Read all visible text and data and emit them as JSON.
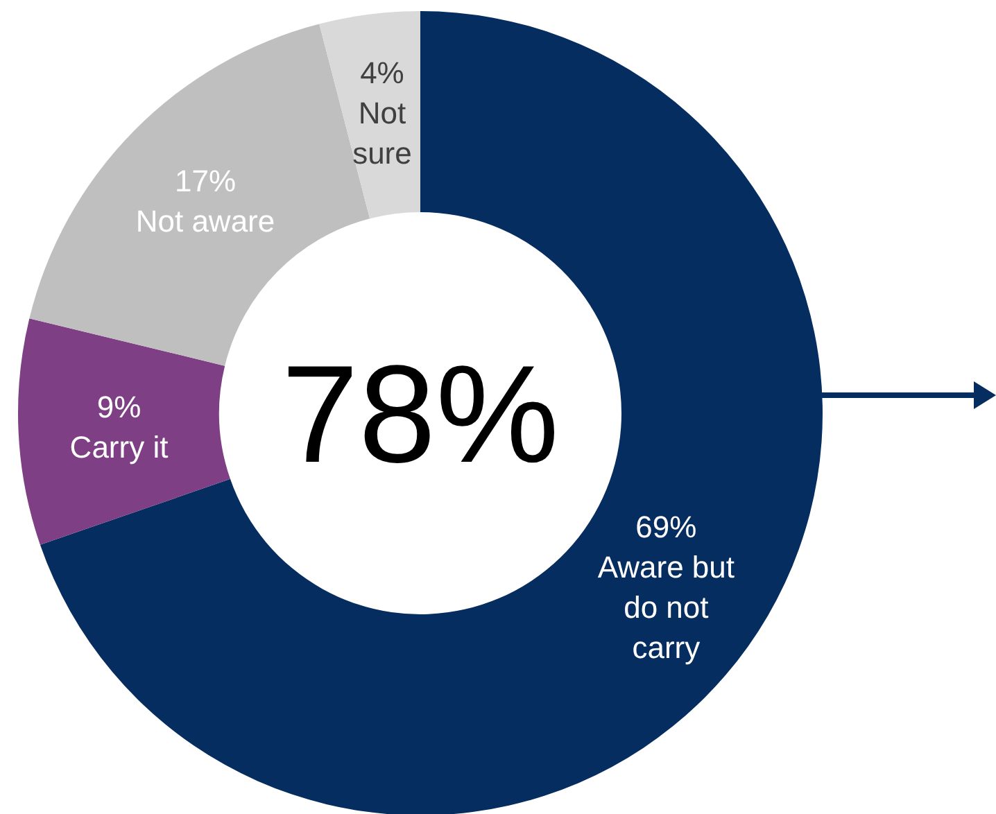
{
  "chart_data": {
    "type": "donut",
    "categories": [
      "Aware but do not carry",
      "Carry it",
      "Not aware",
      "Not sure"
    ],
    "values": [
      69,
      9,
      17,
      4
    ],
    "value_labels": [
      "69%",
      "9%",
      "17%",
      "4%"
    ],
    "colors": [
      "#062d5f",
      "#7f3f85",
      "#bfbfbf",
      "#d9d9d9"
    ],
    "annotations": [
      "78%"
    ]
  }
}
